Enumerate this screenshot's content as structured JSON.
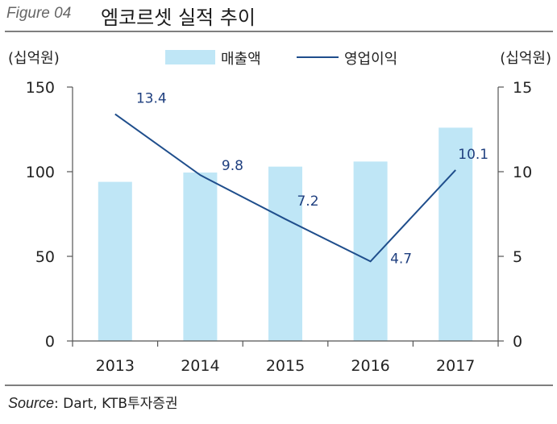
{
  "header": {
    "figure_label": "Figure 04",
    "title": "엠코르셋 실적 추이"
  },
  "source": {
    "label": "Source",
    "text": ": Dart, KTB투자증권"
  },
  "chart_data": {
    "type": "bar",
    "categories": [
      "2013",
      "2014",
      "2015",
      "2016",
      "2017"
    ],
    "series": [
      {
        "name": "매출액",
        "type": "bar",
        "axis": "left",
        "color": "#bfe6f6",
        "values": [
          94,
          99.5,
          103,
          106,
          126
        ]
      },
      {
        "name": "영업이익",
        "type": "line",
        "axis": "right",
        "color": "#1f4e8c",
        "values": [
          13.4,
          9.8,
          7.2,
          4.7,
          10.1
        ],
        "labels": [
          "13.4",
          "9.8",
          "7.2",
          "4.7",
          "10.1"
        ]
      }
    ],
    "y_left": {
      "unit": "(십억원)",
      "range": [
        0,
        150
      ],
      "ticks": [
        "0",
        "50",
        "100",
        "150"
      ]
    },
    "y_right": {
      "unit": "(십억원)",
      "range": [
        0,
        15
      ],
      "ticks": [
        "0",
        "5",
        "10",
        "15"
      ]
    },
    "legend": {
      "position": "top-center"
    },
    "grid": false
  }
}
